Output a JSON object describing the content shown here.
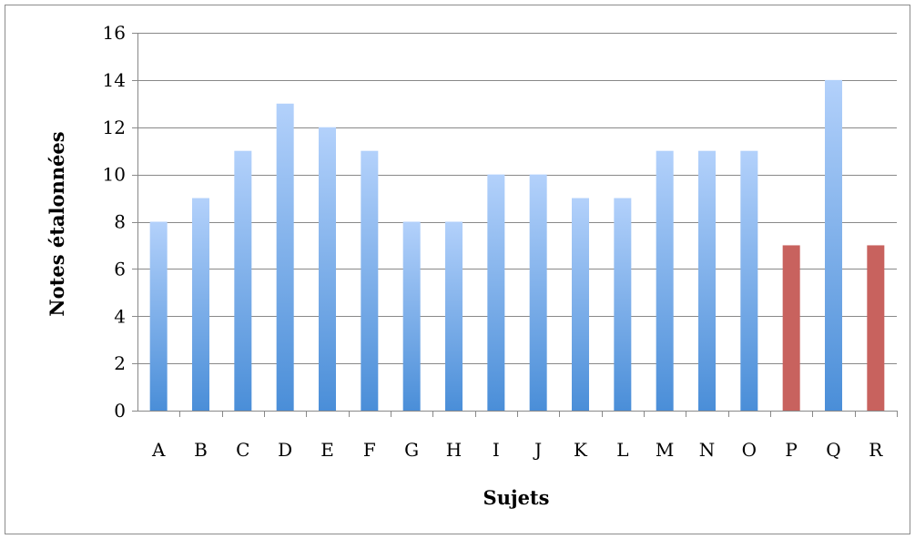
{
  "chart_data": {
    "type": "bar",
    "xlabel": "Sujets",
    "ylabel": "Notes étalonnées",
    "categories": [
      "A",
      "B",
      "C",
      "D",
      "E",
      "F",
      "G",
      "H",
      "I",
      "J",
      "K",
      "L",
      "M",
      "N",
      "O",
      "P",
      "Q",
      "R"
    ],
    "values": [
      8,
      9,
      11,
      13,
      12,
      11,
      8,
      8,
      10,
      10,
      9,
      9,
      11,
      11,
      11,
      7,
      14,
      7
    ],
    "highlighted": [
      "P",
      "R"
    ],
    "ylim": [
      0,
      16
    ],
    "yticks": [
      0,
      2,
      4,
      6,
      8,
      10,
      12,
      14,
      16
    ],
    "grid": true,
    "legend": "none",
    "colors": {
      "bar_top": "#b3d1fb",
      "bar_bottom": "#4a8ed8",
      "highlight": "#c8625e",
      "grid": "#888888",
      "axis": "#888888",
      "frame": "#8c8c8c"
    }
  }
}
